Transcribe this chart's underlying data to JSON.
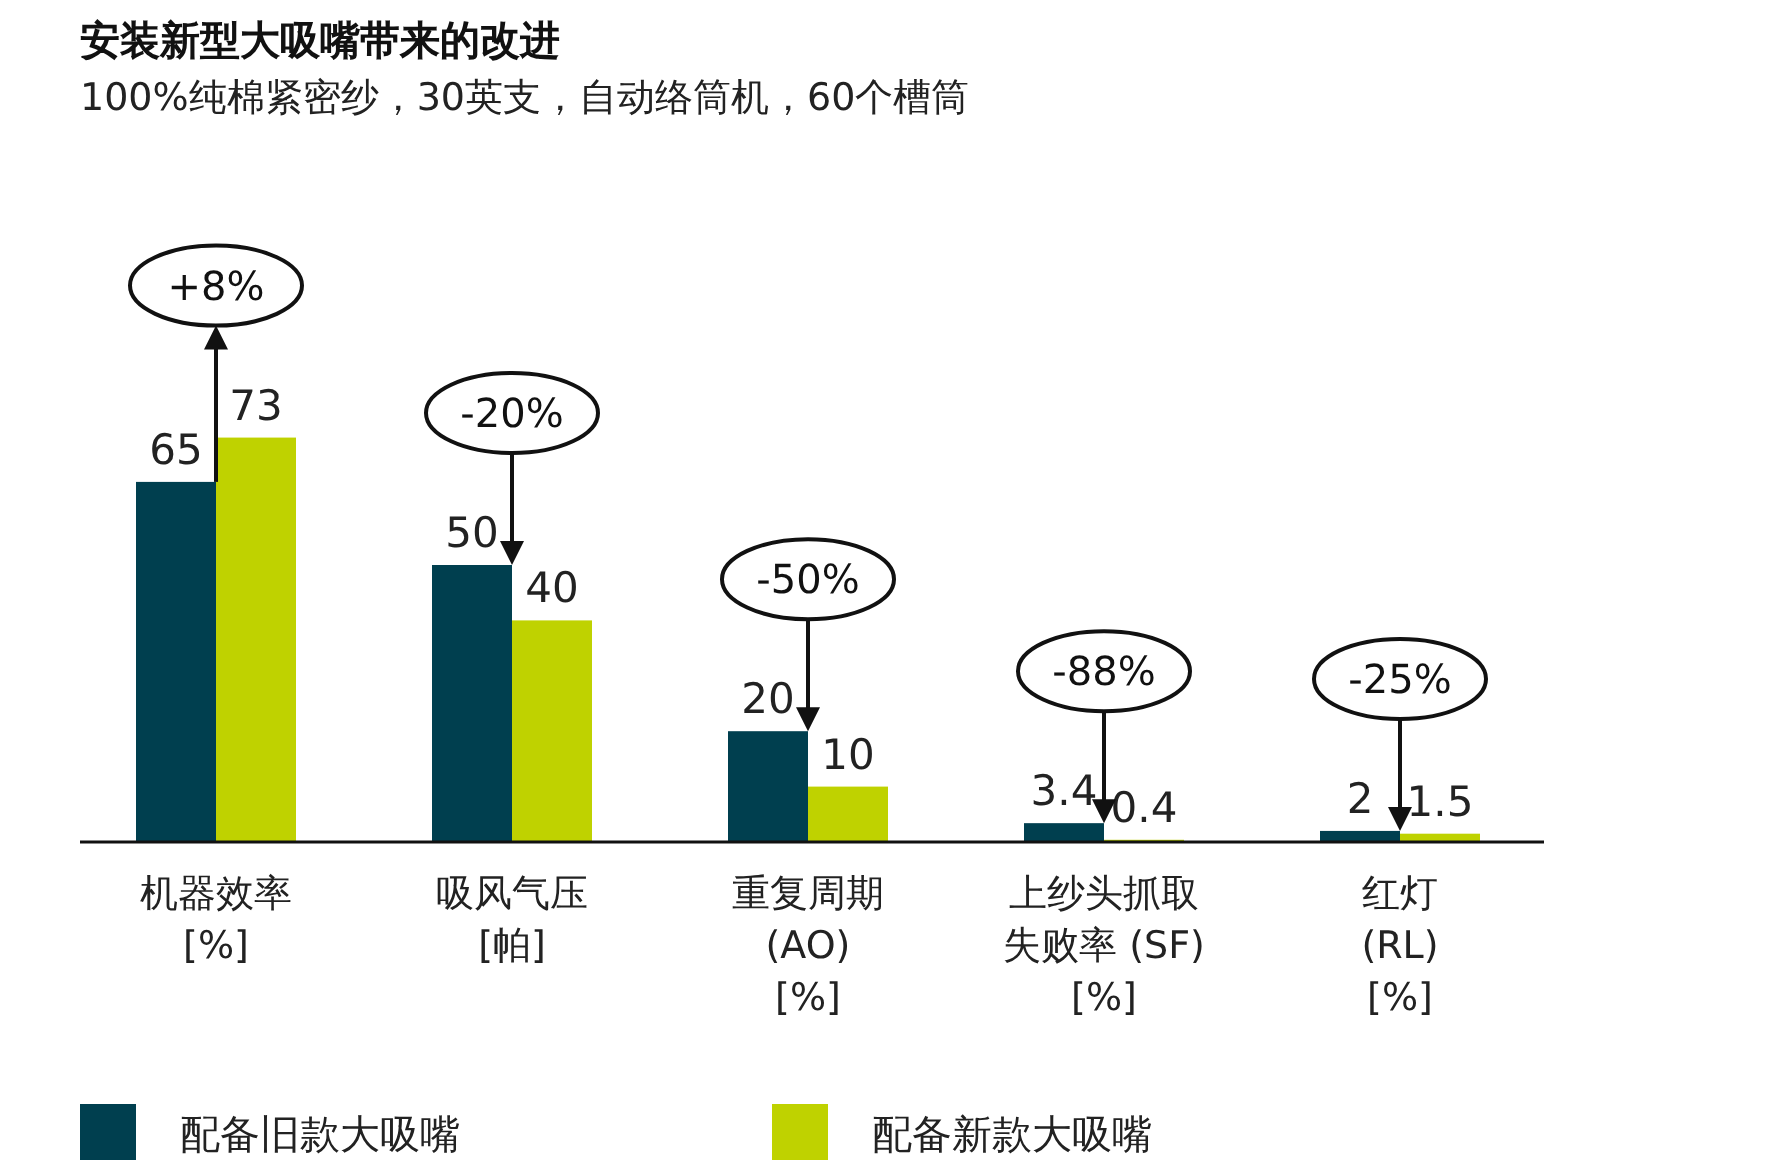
{
  "chart_data": {
    "type": "bar",
    "title": "安装新型大吸嘴带来的改进",
    "subtitle": "100%纯棉紧密纱，30英支，自动络筒机，60个槽筒",
    "categories": [
      "机器效率\n[%]",
      "吸风气压\n[帕]",
      "重复周期\n(AO)\n[%]",
      "上纱头抓取失败率 (SF)\n[%]",
      "红灯\n(RL)\n[%]"
    ],
    "series": [
      {
        "name": "配备旧款大吸嘴",
        "color": "#003f4f",
        "values": [
          65,
          50,
          20,
          3.4,
          2
        ]
      },
      {
        "name": "配备新款大吸嘴",
        "color": "#bfd200",
        "values": [
          73,
          40,
          10,
          0.4,
          1.5
        ]
      }
    ],
    "annotations": [
      "+8%",
      "-20%",
      "-50%",
      "-88%",
      "-25%"
    ],
    "data_labels": true,
    "legend": "bottom"
  }
}
